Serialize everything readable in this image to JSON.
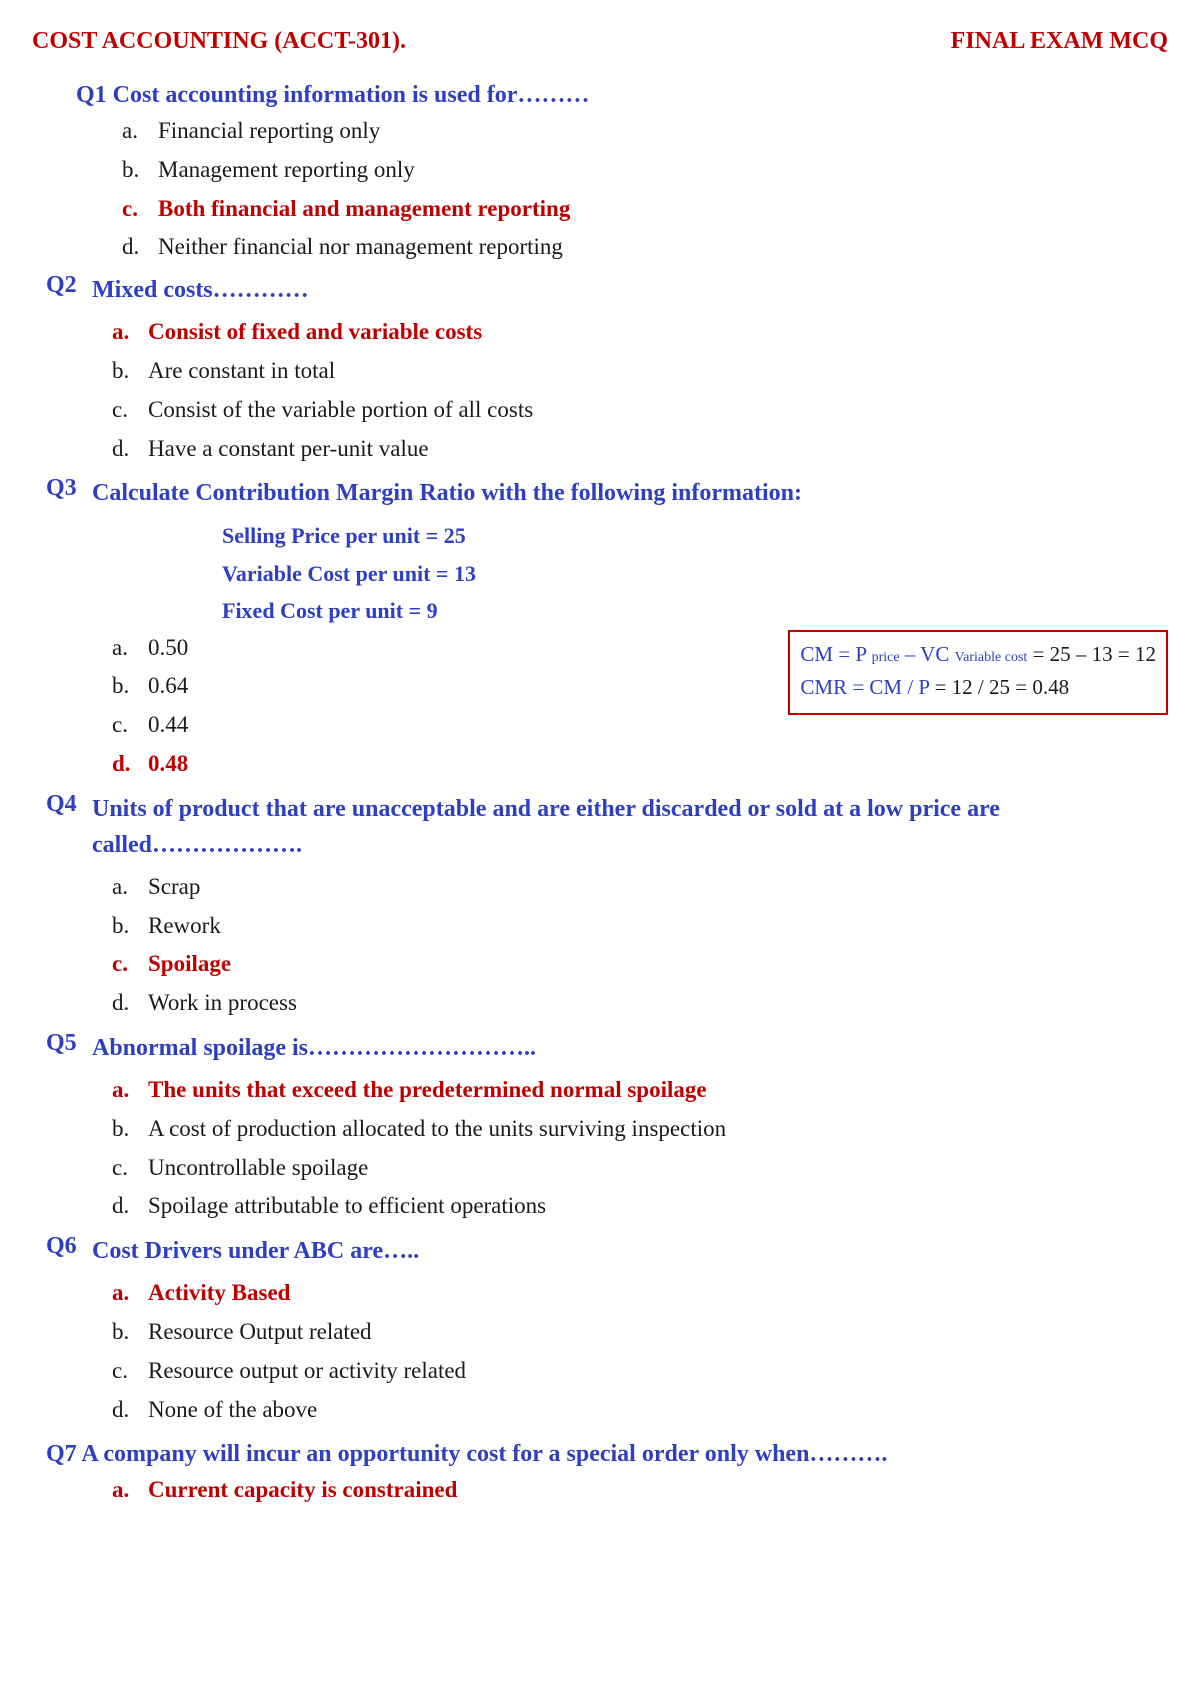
{
  "colors": {
    "red": "#c00000",
    "blue": "#2e3fbf",
    "black": "#1a1a1a",
    "box_border": "#c00000"
  },
  "header": {
    "left": "COST ACCOUNTING (ACCT-301).",
    "right": "FINAL EXAM MCQ"
  },
  "q1": {
    "num": "Q1",
    "text": "Cost accounting information is used for………",
    "opts": {
      "a": "Financial reporting only",
      "b": "Management reporting only",
      "c": "Both financial and management reporting",
      "d": "Neither financial nor management reporting"
    },
    "correct": "c"
  },
  "q2": {
    "num": "Q2",
    "text": "Mixed costs…………",
    "opts": {
      "a": "Consist of fixed and variable costs",
      "b": "Are constant in total",
      "c": "Consist of the variable portion of all costs",
      "d": "Have a constant per-unit value"
    },
    "correct": "a"
  },
  "q3": {
    "num": "Q3",
    "text": "Calculate Contribution Margin Ratio with the following information:",
    "given": {
      "l1": "Selling Price per unit = 25",
      "l2": "Variable Cost per unit = 13",
      "l3": "Fixed Cost per unit   = 9"
    },
    "opts": {
      "a": "0.50",
      "b": "0.64",
      "c": "0.44",
      "d": "0.48"
    },
    "correct": "d",
    "calc": {
      "l1_pre": "CM = P ",
      "l1_sub1": "price",
      "l1_mid": " – VC ",
      "l1_sub2": "Variable cost",
      "l1_post": " = 25 – 13 = 12",
      "l2": "CMR = CM / P",
      "l2_post": " = 12 / 25 = 0.48"
    }
  },
  "q4": {
    "num": "Q4",
    "text": "Units of product that are unacceptable and are either discarded or sold at a low price are called……………….",
    "opts": {
      "a": "Scrap",
      "b": "Rework",
      "c": "Spoilage",
      "d": "Work in process"
    },
    "correct": "c"
  },
  "q5": {
    "num": "Q5",
    "text": "Abnormal spoilage is………………………..",
    "opts": {
      "a": "The units that exceed the predetermined normal spoilage",
      "b": "A cost of production allocated to the units surviving inspection",
      "c": "Uncontrollable spoilage",
      "d": "Spoilage attributable to efficient operations"
    },
    "correct": "a"
  },
  "q6": {
    "num": "Q6",
    "text": "Cost Drivers under ABC are…..",
    "opts": {
      "a": "Activity Based",
      "b": "Resource Output related",
      "c": "Resource output or activity related",
      "d": "None of the above"
    },
    "correct": "a"
  },
  "q7": {
    "num": "Q7",
    "text": "A company will incur an opportunity cost for a special order only when……….",
    "opts": {
      "a": "Current capacity is constrained"
    },
    "correct": "a"
  }
}
